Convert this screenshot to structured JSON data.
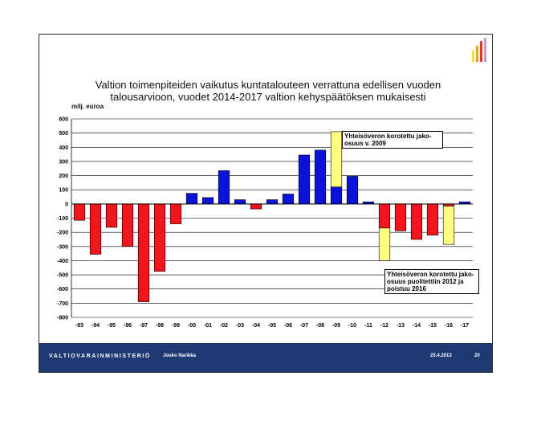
{
  "slide": {
    "title": "Valtion toimenpiteiden vaikutus kuntatalouteen verrattuna edellisen vuoden talousarvioon, vuodet 2014-2017 valtion kehyspäätöksen mukaisesti",
    "footer": {
      "ministry": "VALTIOVARAINMINISTERIÖ",
      "author": "Jouko Narikka",
      "date": "25.4.2013",
      "page": "20"
    },
    "logo_bar_colors": [
      "#f5e13b",
      "#f0a030",
      "#e03828",
      "#c0a0c8"
    ]
  },
  "chart_data": {
    "type": "bar",
    "stacked": true,
    "title": "Valtion toimenpiteiden vaikutus kuntatalouteen verrattuna edellisen vuoden talousarvioon, vuodet 2014-2017 valtion kehyspäätöksen mukaisesti",
    "ylabel": "milj. euroa",
    "xlabel": "",
    "ylim": [
      -800,
      600
    ],
    "yticks": [
      600,
      500,
      400,
      300,
      200,
      100,
      0,
      -100,
      -200,
      -300,
      -400,
      -500,
      -600,
      -700,
      -800
    ],
    "grid": true,
    "categories": [
      "-93",
      "-94",
      "-95",
      "-96",
      "-97",
      "-98",
      "-99",
      "-00",
      "-01",
      "-02",
      "-03",
      "-04",
      "-05",
      "-06",
      "-07",
      "-08",
      "-09",
      "-10",
      "-11",
      "-12",
      "-13",
      "-14",
      "-15",
      "-16",
      "-17"
    ],
    "values": [
      -115,
      -355,
      -165,
      -300,
      -690,
      -475,
      -140,
      75,
      45,
      235,
      30,
      -35,
      30,
      70,
      345,
      380,
      120,
      195,
      15,
      -170,
      -190,
      -250,
      -220,
      -15,
      15
    ],
    "extra_values": [
      0,
      0,
      0,
      0,
      0,
      0,
      0,
      0,
      0,
      0,
      0,
      0,
      0,
      0,
      0,
      0,
      390,
      0,
      0,
      -230,
      0,
      0,
      0,
      -270,
      0
    ],
    "colors": {
      "positive": "#0b13d8",
      "negative": "#f4141e",
      "extra": "#ffff80"
    },
    "annotations": [
      {
        "text": "Yhteisöveron korotettu jako-osuus v. 2009",
        "category": "-09"
      },
      {
        "text": "Yhteisöveron korotettu jako-osuus puolitettiin 2012 ja poistuu 2016",
        "category": "-16"
      }
    ]
  }
}
